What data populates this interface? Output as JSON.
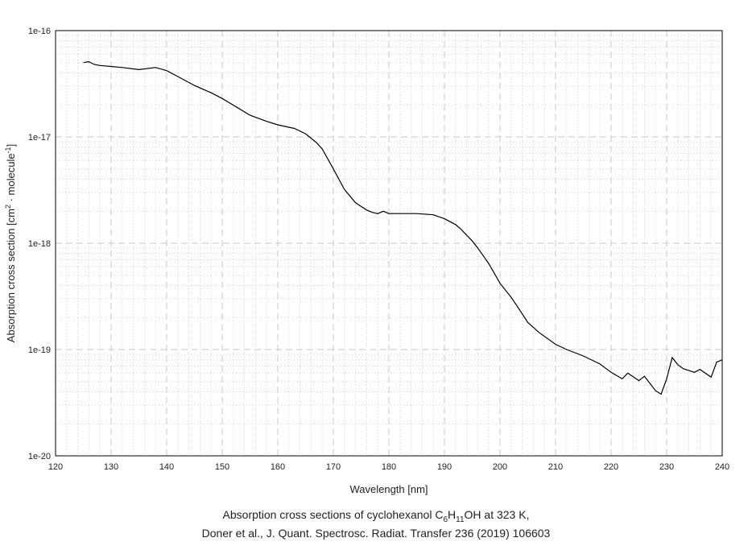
{
  "chart_data": {
    "type": "line",
    "title": "",
    "xlabel": "Wavelength [nm]",
    "ylabel_main": "Absorption cross section [cm",
    "ylabel_sup1": "2",
    "ylabel_mid": " · molecule",
    "ylabel_sup2": "-1",
    "ylabel_end": "]",
    "xlim": [
      120,
      240
    ],
    "ylim": [
      1e-20,
      1e-16
    ],
    "yscale": "log",
    "grid": true,
    "xticks": [
      "120",
      "130",
      "140",
      "150",
      "160",
      "170",
      "180",
      "190",
      "200",
      "210",
      "220",
      "230",
      "240"
    ],
    "yticks": [
      "1e-16",
      "1e-17",
      "1e-18",
      "1e-19",
      "1e-20"
    ],
    "series": [
      {
        "name": "cyclohexanol",
        "color": "#000000",
        "x": [
          125,
          126,
          127,
          128,
          130,
          132,
          135,
          138,
          140,
          142,
          145,
          148,
          150,
          153,
          155,
          158,
          160,
          163,
          165,
          167,
          168,
          170,
          172,
          174,
          176,
          177,
          178,
          179,
          180,
          182,
          185,
          188,
          190,
          192,
          193,
          195,
          196,
          197,
          198,
          200,
          202,
          203,
          205,
          207,
          210,
          212,
          215,
          218,
          220,
          222,
          223,
          225,
          226,
          228,
          229,
          230,
          231,
          232,
          233,
          235,
          236,
          238,
          239,
          240
        ],
        "y": [
          5e-17,
          5.1e-17,
          4.8e-17,
          4.7e-17,
          4.6e-17,
          4.5e-17,
          4.3e-17,
          4.5e-17,
          4.2e-17,
          3.7e-17,
          3.05e-17,
          2.6e-17,
          2.3e-17,
          1.85e-17,
          1.6e-17,
          1.4e-17,
          1.3e-17,
          1.2e-17,
          1.07e-17,
          8.8e-18,
          7.7e-18,
          5e-18,
          3.2e-18,
          2.4e-18,
          2.05e-18,
          1.95e-18,
          1.9e-18,
          2e-18,
          1.9e-18,
          1.9e-18,
          1.9e-18,
          1.85e-18,
          1.7e-18,
          1.5e-18,
          1.35e-18,
          1.05e-18,
          9e-19,
          7.6e-19,
          6.4e-19,
          4.2e-19,
          3.1e-19,
          2.6e-19,
          1.8e-19,
          1.45e-19,
          1.12e-19,
          1e-19,
          8.7e-20,
          7.3e-20,
          6.1e-20,
          5.3e-20,
          6e-20,
          5.1e-20,
          5.6e-20,
          4.1e-20,
          3.8e-20,
          5.3e-20,
          8.4e-20,
          7.2e-20,
          6.6e-20,
          6.1e-20,
          6.5e-20,
          5.5e-20,
          7.6e-20,
          8e-20
        ]
      }
    ]
  },
  "caption": {
    "line1_pre": "Absorption cross sections of cyclohexanol C",
    "sub1": "6",
    "mid1": "H",
    "sub2": "11",
    "line1_post": "OH at 323 K,",
    "line2": "Doner et al., J. Quant. Spectrosc. Radiat. Transfer 236 (2019) 106603"
  }
}
